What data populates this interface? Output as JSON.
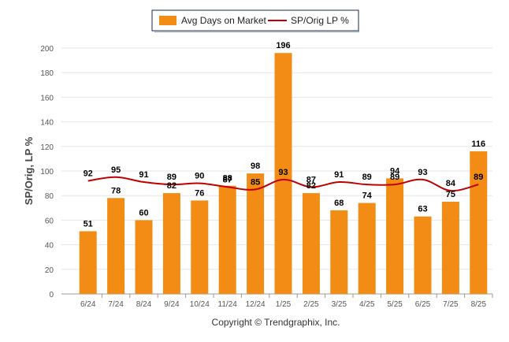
{
  "legend": {
    "bar_label": "Avg Days on Market",
    "line_label": "SP/Orig LP %"
  },
  "copyright": "Copyright © Trendgraphix, Inc.",
  "colors": {
    "bar": "#F28C14",
    "line": "#C00000",
    "grid": "#E6E6E6",
    "axis": "#999999"
  },
  "chart_data": {
    "type": "bar",
    "categories": [
      "6/24",
      "7/24",
      "8/24",
      "9/24",
      "10/24",
      "11/24",
      "12/24",
      "1/25",
      "2/25",
      "3/25",
      "4/25",
      "5/25",
      "6/25",
      "7/25",
      "8/25"
    ],
    "series": [
      {
        "name": "Avg Days on Market",
        "type": "bar",
        "values": [
          51,
          78,
          60,
          82,
          76,
          88,
          98,
          196,
          82,
          68,
          74,
          94,
          63,
          75,
          116
        ]
      },
      {
        "name": "SP/Orig LP %",
        "type": "line",
        "values": [
          92,
          95,
          91,
          89,
          90,
          87,
          85,
          93,
          87,
          91,
          89,
          89,
          93,
          84,
          89
        ]
      }
    ],
    "ylabel": "SP/Orig, LP %",
    "yticks": [
      0,
      20,
      40,
      60,
      80,
      100,
      120,
      140,
      160,
      180,
      200
    ],
    "ylim": [
      0,
      200
    ],
    "grid": true,
    "legend_position": "top-center"
  }
}
